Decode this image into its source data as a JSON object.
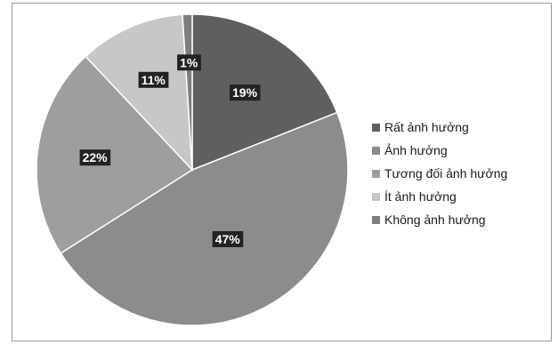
{
  "chart_data": {
    "type": "pie",
    "title": "",
    "categories": [
      "Rất ảnh hưởng",
      "Ảnh hưởng",
      "Tương đối ảnh hưởng",
      "Ít ảnh hưởng",
      "Không ảnh hưởng"
    ],
    "values": [
      19,
      47,
      22,
      11,
      1
    ],
    "data_labels": [
      "19%",
      "47%",
      "22%",
      "11%",
      "1%"
    ],
    "colors": [
      "#5f5f5f",
      "#8c8c8c",
      "#9e9e9e",
      "#c7c7c7",
      "#7e7e7e"
    ],
    "legend_position": "right",
    "start_angle": "12 o'clock, clockwise"
  }
}
